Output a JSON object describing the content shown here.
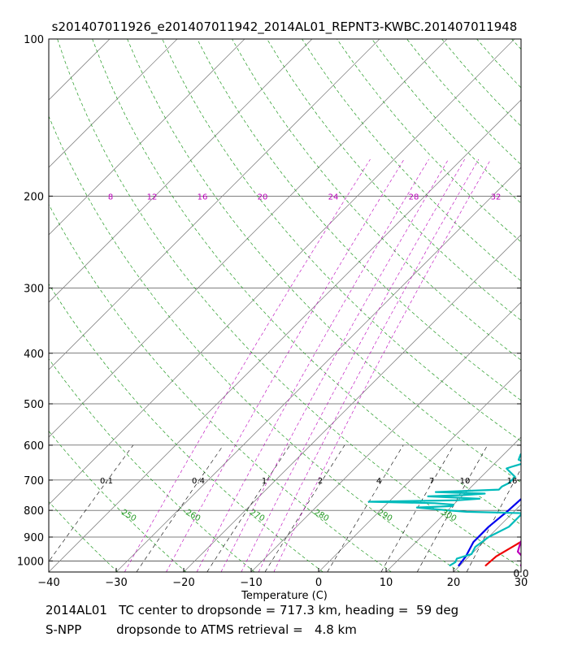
{
  "chart_data": {
    "type": "line",
    "subtype": "skew-T log-P thermodynamic diagram",
    "title": "s201407011926_e201407011942_2014AL01_REPNT3-KWBC.201407011948",
    "xlabel": "Temperature (C)",
    "ylabel": "",
    "xlim": [
      -40,
      30
    ],
    "ylim": [
      1050,
      100
    ],
    "x_ticks": [
      -40,
      -30,
      -20,
      -10,
      0,
      10,
      20,
      30
    ],
    "y_ticks": [
      100,
      200,
      300,
      400,
      500,
      600,
      700,
      800,
      900,
      1000
    ],
    "corner_label": "0.0",
    "mixing_ratio_labels_200hPa": [
      "8",
      "12",
      "16",
      "20",
      "24",
      "28",
      "32"
    ],
    "mixing_ratio_labels_700hPa": [
      "0.1",
      "0.4",
      "1",
      "2",
      "4",
      "7",
      "10",
      "16"
    ],
    "dry_adiabat_labels": [
      "250",
      "260",
      "270",
      "280",
      "290",
      "300"
    ],
    "series": [
      {
        "name": "red temperature",
        "color": "#ee0000",
        "points": [
          [
            1020,
            23.8
          ],
          [
            980,
            24
          ],
          [
            900,
            26
          ],
          [
            820,
            27.5
          ],
          [
            770,
            28
          ],
          [
            700,
            26.5
          ],
          [
            650,
            26
          ],
          [
            550,
            24.5
          ],
          [
            450,
            22
          ],
          [
            400,
            21.5
          ],
          [
            360,
            20
          ],
          [
            300,
            18.5
          ],
          [
            260,
            18.5
          ],
          [
            230,
            20
          ],
          [
            200,
            21.5
          ],
          [
            175,
            23
          ],
          [
            150,
            25
          ],
          [
            130,
            27.5
          ],
          [
            115,
            29.5
          ],
          [
            100,
            31
          ]
        ]
      },
      {
        "name": "magenta dewpoint",
        "color": "#bb00bb",
        "points": [
          [
            1020,
            29
          ],
          [
            990,
            28.5
          ],
          [
            960,
            26.5
          ],
          [
            920,
            25.5
          ],
          [
            880,
            25
          ],
          [
            840,
            25
          ],
          [
            810,
            26
          ],
          [
            790,
            27
          ],
          [
            760,
            26
          ],
          [
            740,
            23
          ],
          [
            720,
            22
          ],
          [
            700,
            20.5
          ],
          [
            650,
            19
          ],
          [
            600,
            17.5
          ],
          [
            560,
            16.5
          ],
          [
            520,
            15.5
          ],
          [
            490,
            15
          ],
          [
            470,
            16.5
          ],
          [
            420,
            18.5
          ],
          [
            370,
            20
          ],
          [
            330,
            22.5
          ],
          [
            300,
            24
          ],
          [
            270,
            25.5
          ],
          [
            240,
            26.5
          ],
          [
            210,
            27.5
          ],
          [
            200,
            28
          ],
          [
            180,
            28.5
          ],
          [
            170,
            28.5
          ]
        ]
      },
      {
        "name": "blue temperature",
        "color": "#0000ee",
        "points": [
          [
            1020,
            19.8
          ],
          [
            980,
            19.5
          ],
          [
            920,
            18.5
          ],
          [
            860,
            18.5
          ],
          [
            800,
            19
          ],
          [
            700,
            19.5
          ],
          [
            650,
            19.8
          ],
          [
            600,
            19.5
          ],
          [
            550,
            18.5
          ],
          [
            500,
            17.5
          ],
          [
            450,
            17
          ],
          [
            400,
            15.5
          ],
          [
            350,
            14
          ],
          [
            300,
            12.5
          ],
          [
            250,
            11.5
          ],
          [
            200,
            11
          ],
          [
            170,
            12
          ],
          [
            140,
            13.5
          ],
          [
            120,
            15.5
          ],
          [
            100,
            17
          ]
        ]
      },
      {
        "name": "cyan dewpoint",
        "color": "#00bbbb",
        "points": [
          [
            1020,
            18.5
          ],
          [
            1005,
            18.8
          ],
          [
            990,
            18.5
          ],
          [
            970,
            20
          ],
          [
            940,
            19.5
          ],
          [
            900,
            20
          ],
          [
            860,
            21.5
          ],
          [
            830,
            21.5
          ],
          [
            810,
            21.5
          ],
          [
            805,
            13
          ],
          [
            800,
            10
          ],
          [
            795,
            7.5
          ],
          [
            790,
            5
          ],
          [
            785,
            10
          ],
          [
            780,
            10
          ],
          [
            775,
            7
          ],
          [
            770,
            -3
          ],
          [
            765,
            10
          ],
          [
            760,
            13
          ],
          [
            752,
            5
          ],
          [
            748,
            10
          ],
          [
            743,
            13
          ],
          [
            738,
            5.5
          ],
          [
            730,
            14.5
          ],
          [
            720,
            14.5
          ],
          [
            710,
            15
          ],
          [
            700,
            15
          ],
          [
            690,
            15
          ],
          [
            680,
            14
          ],
          [
            665,
            12.5
          ],
          [
            660,
            13
          ],
          [
            648,
            14.5
          ],
          [
            640,
            13
          ],
          [
            625,
            12.5
          ],
          [
            600,
            12.5
          ],
          [
            560,
            11
          ],
          [
            530,
            11.5
          ],
          [
            500,
            11
          ],
          [
            470,
            9
          ],
          [
            440,
            8.5
          ],
          [
            410,
            12.5
          ],
          [
            375,
            16.5
          ],
          [
            340,
            14
          ],
          [
            310,
            17
          ],
          [
            290,
            20
          ],
          [
            250,
            24
          ],
          [
            235,
            27.5
          ],
          [
            220,
            32
          ],
          [
            210,
            33
          ]
        ]
      }
    ]
  },
  "caption": {
    "line1": "2014AL01   TC center to dropsonde = 717.3 km, heading =  59 deg",
    "line2": "S-NPP         dropsonde to ATMS retrieval =   4.8 km"
  }
}
